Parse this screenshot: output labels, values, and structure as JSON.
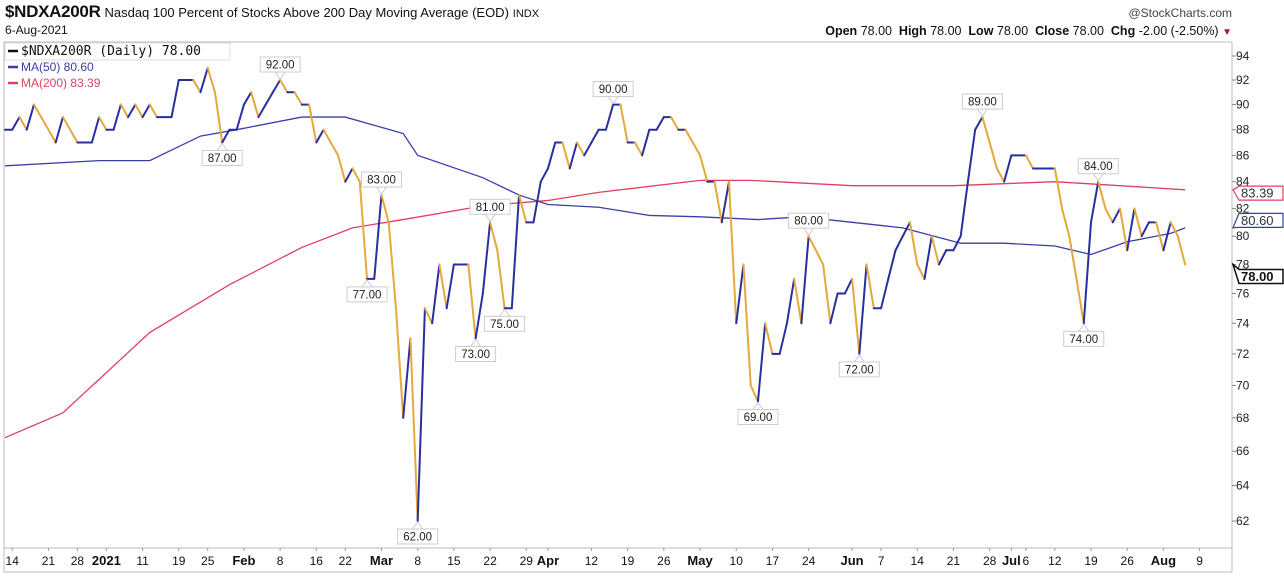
{
  "header": {
    "symbol": "$NDXA200R",
    "description": "Nasdaq 100 Percent of Stocks Above 200 Day Moving Average (EOD)",
    "exchange": "INDX",
    "date": "6-Aug-2021",
    "brand": "@StockCharts.com",
    "open_label": "Open",
    "open": "78.00",
    "high_label": "High",
    "high": "78.00",
    "low_label": "Low",
    "low": "78.00",
    "close_label": "Close",
    "close": "78.00",
    "chg_label": "Chg",
    "chg": "-2.00 (-2.50%)",
    "chg_arrow": "▼"
  },
  "colors": {
    "up": "#2a2f9e",
    "down": "#e5a83a",
    "ma50": "#3a3fa8",
    "ma200": "#e0405e",
    "frame": "#bbbbbb"
  },
  "chart_data": {
    "type": "line",
    "title": "$NDXA200R Nasdaq 100 Percent of Stocks Above 200 Day Moving Average (EOD)",
    "yscale": "log",
    "ylim": [
      60.5,
      95.5
    ],
    "yticks": [
      62,
      64,
      66,
      68,
      70,
      72,
      74,
      76,
      78,
      80,
      82,
      84,
      86,
      88,
      90,
      92,
      94
    ],
    "legend": [
      {
        "label": "$NDXA200R (Daily) 78.00",
        "color": "#111111"
      },
      {
        "label": "MA(50) 80.60",
        "color": "#3a3fa8"
      },
      {
        "label": "MA(200) 83.39",
        "color": "#e0405e"
      }
    ],
    "series_main": {
      "name": "$NDXA200R (Daily)",
      "values": [
        88,
        88,
        89,
        88,
        90,
        89,
        88,
        87,
        89,
        88,
        87,
        87,
        87,
        89,
        88,
        88,
        90,
        89,
        90,
        89,
        90,
        89,
        89,
        89,
        92,
        92,
        92,
        91,
        93,
        91,
        87,
        88,
        88,
        90,
        91,
        89,
        90,
        91,
        92,
        91,
        91,
        90,
        90,
        87,
        88,
        87,
        86,
        84,
        85,
        84,
        77,
        77,
        83,
        81,
        75,
        68,
        73,
        62,
        75,
        74,
        78,
        75,
        78,
        78,
        78,
        73,
        76,
        81,
        79,
        75,
        75,
        83,
        81,
        81,
        84,
        85,
        87,
        87,
        85,
        87,
        86,
        87,
        88,
        88,
        90,
        90,
        87,
        87,
        86,
        88,
        88,
        89,
        89,
        88,
        88,
        87,
        86,
        84,
        84,
        81,
        84,
        74,
        78,
        70,
        69,
        74,
        72,
        72,
        74,
        77,
        74,
        80,
        79,
        78,
        74,
        76,
        76,
        77,
        72,
        78,
        75,
        75,
        77,
        79,
        80,
        81,
        78,
        77,
        80,
        78,
        79,
        79,
        80,
        84,
        88,
        89,
        87,
        85,
        84,
        86,
        86,
        86,
        85,
        85,
        85,
        85,
        82,
        80,
        77,
        74,
        81,
        84,
        82,
        81,
        82,
        79,
        82,
        80,
        81,
        81,
        79,
        81,
        80,
        78
      ]
    },
    "series_ma50": {
      "name": "MA(50)",
      "points": [
        [
          0,
          85.2
        ],
        [
          13,
          85.6
        ],
        [
          20,
          85.6
        ],
        [
          27,
          87.5
        ],
        [
          32,
          88
        ],
        [
          41,
          89
        ],
        [
          47,
          89
        ],
        [
          55,
          87.7
        ],
        [
          57,
          86
        ],
        [
          66,
          84.3
        ],
        [
          71,
          83
        ],
        [
          75,
          82.3
        ],
        [
          82,
          82.1
        ],
        [
          89,
          81.5
        ],
        [
          96,
          81.4
        ],
        [
          104,
          81.2
        ],
        [
          110,
          81.4
        ],
        [
          117,
          81
        ],
        [
          124,
          80.6
        ],
        [
          132,
          79.5
        ],
        [
          138,
          79.5
        ],
        [
          145,
          79.3
        ],
        [
          150,
          78.7
        ],
        [
          155,
          79.6
        ],
        [
          161,
          80.2
        ],
        [
          163,
          80.6
        ]
      ]
    },
    "series_ma200": {
      "name": "MA(200)",
      "points": [
        [
          0,
          66.8
        ],
        [
          8,
          68.3
        ],
        [
          20,
          73.4
        ],
        [
          31,
          76.6
        ],
        [
          41,
          79.2
        ],
        [
          48,
          80.6
        ],
        [
          55,
          81.2
        ],
        [
          66,
          82.2
        ],
        [
          75,
          82.6
        ],
        [
          82,
          83.2
        ],
        [
          96,
          84.1
        ],
        [
          103,
          84.1
        ],
        [
          117,
          83.7
        ],
        [
          131,
          83.7
        ],
        [
          145,
          84
        ],
        [
          154,
          83.7
        ],
        [
          163,
          83.39
        ]
      ]
    },
    "annotations": [
      {
        "i": 38,
        "v": 92,
        "text": "92.00",
        "pos": "above"
      },
      {
        "i": 30,
        "v": 87,
        "text": "87.00",
        "pos": "below"
      },
      {
        "i": 52,
        "v": 83,
        "text": "83.00",
        "pos": "above"
      },
      {
        "i": 50,
        "v": 77,
        "text": "77.00",
        "pos": "below"
      },
      {
        "i": 57,
        "v": 62,
        "text": "62.00",
        "pos": "below"
      },
      {
        "i": 65,
        "v": 73,
        "text": "73.00",
        "pos": "below"
      },
      {
        "i": 67,
        "v": 81,
        "text": "81.00",
        "pos": "above"
      },
      {
        "i": 69,
        "v": 75,
        "text": "75.00",
        "pos": "below"
      },
      {
        "i": 84,
        "v": 90,
        "text": "90.00",
        "pos": "above"
      },
      {
        "i": 104,
        "v": 69,
        "text": "69.00",
        "pos": "below"
      },
      {
        "i": 111,
        "v": 80,
        "text": "80.00",
        "pos": "above"
      },
      {
        "i": 118,
        "v": 72,
        "text": "72.00",
        "pos": "below"
      },
      {
        "i": 135,
        "v": 89,
        "text": "89.00",
        "pos": "above"
      },
      {
        "i": 149,
        "v": 74,
        "text": "74.00",
        "pos": "below"
      },
      {
        "i": 151,
        "v": 84,
        "text": "84.00",
        "pos": "above"
      }
    ],
    "last_values": [
      {
        "text": "83.39",
        "v": 83.39,
        "color": "#e0405e",
        "bold": false
      },
      {
        "text": "80.60",
        "v": 80.6,
        "color": "#3a3fa8",
        "bold": false
      },
      {
        "text": "78.00",
        "v": 78,
        "color": "#111111",
        "bold": true
      }
    ],
    "xticks": [
      {
        "i": 1,
        "label": "14",
        "bold": false
      },
      {
        "i": 6,
        "label": "21",
        "bold": false
      },
      {
        "i": 10,
        "label": "28",
        "bold": false
      },
      {
        "i": 14,
        "label": "2021",
        "bold": true
      },
      {
        "i": 19,
        "label": "11",
        "bold": false
      },
      {
        "i": 24,
        "label": "19",
        "bold": false
      },
      {
        "i": 28,
        "label": "25",
        "bold": false
      },
      {
        "i": 33,
        "label": "Feb",
        "bold": true
      },
      {
        "i": 38,
        "label": "8",
        "bold": false
      },
      {
        "i": 43,
        "label": "16",
        "bold": false
      },
      {
        "i": 47,
        "label": "22",
        "bold": false
      },
      {
        "i": 52,
        "label": "Mar",
        "bold": true
      },
      {
        "i": 57,
        "label": "8",
        "bold": false
      },
      {
        "i": 62,
        "label": "15",
        "bold": false
      },
      {
        "i": 67,
        "label": "22",
        "bold": false
      },
      {
        "i": 72,
        "label": "29",
        "bold": false
      },
      {
        "i": 75,
        "label": "Apr",
        "bold": true
      },
      {
        "i": 81,
        "label": "12",
        "bold": false
      },
      {
        "i": 86,
        "label": "19",
        "bold": false
      },
      {
        "i": 91,
        "label": "26",
        "bold": false
      },
      {
        "i": 96,
        "label": "May",
        "bold": true
      },
      {
        "i": 101,
        "label": "10",
        "bold": false
      },
      {
        "i": 106,
        "label": "17",
        "bold": false
      },
      {
        "i": 111,
        "label": "24",
        "bold": false
      },
      {
        "i": 117,
        "label": "Jun",
        "bold": true
      },
      {
        "i": 121,
        "label": "7",
        "bold": false
      },
      {
        "i": 126,
        "label": "14",
        "bold": false
      },
      {
        "i": 131,
        "label": "21",
        "bold": false
      },
      {
        "i": 136,
        "label": "28",
        "bold": false
      },
      {
        "i": 139,
        "label": "Jul",
        "bold": true
      },
      {
        "i": 141,
        "label": "6",
        "bold": false
      },
      {
        "i": 145,
        "label": "12",
        "bold": false
      },
      {
        "i": 150,
        "label": "19",
        "bold": false
      },
      {
        "i": 155,
        "label": "26",
        "bold": false
      },
      {
        "i": 160,
        "label": "Aug",
        "bold": true
      },
      {
        "i": 165,
        "label": "9",
        "bold": false
      }
    ]
  }
}
